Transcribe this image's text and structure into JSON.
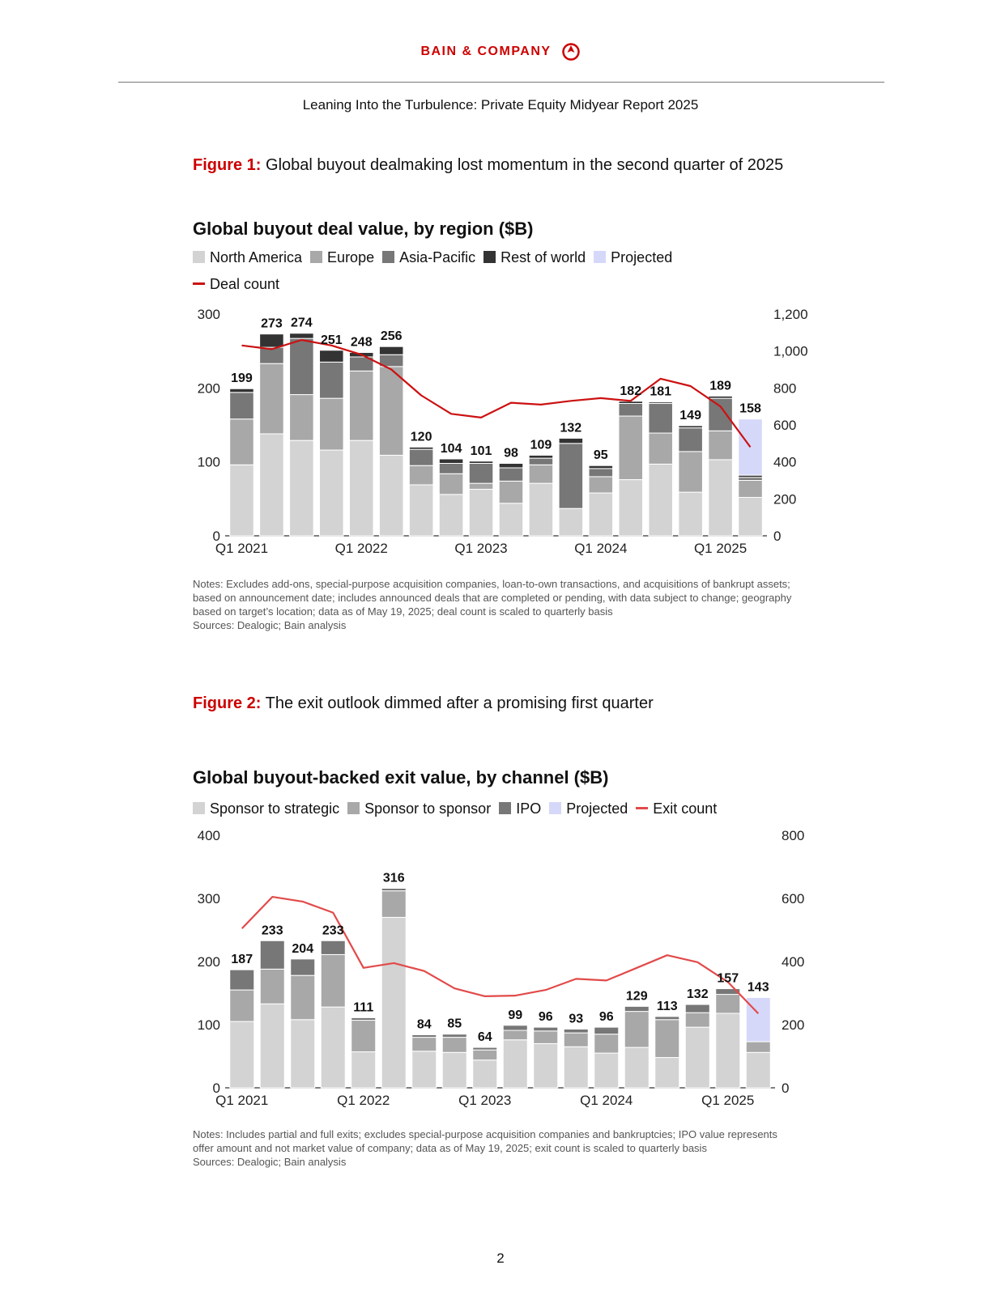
{
  "header": {
    "brand": "BAIN & COMPANY",
    "brand_color": "#cc0000",
    "report_title": "Leaning Into the Turbulence: Private Equity Midyear Report 2025"
  },
  "figure1": {
    "label": "Figure 1:",
    "caption": "Global buyout dealmaking lost momentum in the second quarter of 2025",
    "legend": [
      {
        "label": "North America",
        "color": "#d3d3d3",
        "kind": "box"
      },
      {
        "label": "Europe",
        "color": "#a8a8a8",
        "kind": "box"
      },
      {
        "label": "Asia-Pacific",
        "color": "#777777",
        "kind": "box"
      },
      {
        "label": "Rest of world",
        "color": "#333333",
        "kind": "box"
      },
      {
        "label": "Projected",
        "color": "#d6d8fa",
        "kind": "box"
      },
      {
        "label": "Deal count",
        "color": "#cc1111",
        "kind": "line"
      }
    ],
    "notes": "Notes: Excludes add-ons, special-purpose acquisition companies, loan-to-own transactions, and acquisitions of bankrupt assets; based on announcement date; includes announced deals that are completed or pending, with data subject to change; geography based on target’s location; data as of May 19, 2025; deal count is scaled to quarterly basis",
    "sources": "Sources: Dealogic; Bain analysis"
  },
  "figure2": {
    "label": "Figure 2:",
    "caption": "The exit outlook dimmed after a promising first quarter",
    "legend": [
      {
        "label": "Sponsor to strategic",
        "color": "#d3d3d3",
        "kind": "box"
      },
      {
        "label": "Sponsor to sponsor",
        "color": "#a8a8a8",
        "kind": "box"
      },
      {
        "label": "IPO",
        "color": "#777777",
        "kind": "box"
      },
      {
        "label": "Projected",
        "color": "#d6d8fa",
        "kind": "box"
      },
      {
        "label": "Exit count",
        "color": "#e24a4a",
        "kind": "line"
      }
    ],
    "notes": "Notes: Includes partial and full exits; excludes special-purpose acquisition companies and bankruptcies; IPO value represents offer amount and not market value of company; data as of May 19, 2025; exit count is scaled to quarterly basis",
    "sources": "Sources: Dealogic; Bain analysis"
  },
  "page_number": "2",
  "chart_data": [
    {
      "type": "bar",
      "stacked": true,
      "title": "Global buyout deal value, by region ($B)",
      "x_tick_labels": [
        {
          "index": 0,
          "label": "Q1 2021"
        },
        {
          "index": 4,
          "label": "Q1 2022"
        },
        {
          "index": 8,
          "label": "Q1 2023"
        },
        {
          "index": 12,
          "label": "Q1 2024"
        },
        {
          "index": 16,
          "label": "Q1 2025"
        }
      ],
      "ylim": [
        0,
        300
      ],
      "y_ticks": [
        0,
        100,
        200,
        300
      ],
      "y2lim": [
        0,
        1200
      ],
      "y2_ticks": [
        "0",
        "200",
        "400",
        "600",
        "800",
        "1,000",
        "1,200"
      ],
      "grid": false,
      "legend_position": "top-left",
      "series": [
        {
          "name": "North America",
          "color": "#d3d3d3",
          "values": [
            96,
            138,
            129,
            116,
            129,
            109,
            69,
            56,
            63,
            44,
            71,
            37,
            58,
            76,
            97,
            59,
            103,
            52
          ]
        },
        {
          "name": "Europe",
          "color": "#a8a8a8",
          "values": [
            62,
            95,
            62,
            70,
            94,
            120,
            26,
            28,
            8,
            30,
            25,
            0,
            22,
            86,
            42,
            55,
            39,
            23
          ]
        },
        {
          "name": "Asia-Pacific",
          "color": "#777777",
          "values": [
            36,
            22,
            76,
            49,
            19,
            16,
            22,
            14,
            27,
            18,
            9,
            88,
            11,
            17,
            40,
            32,
            44,
            4
          ]
        },
        {
          "name": "Rest of world",
          "color": "#333333",
          "values": [
            5,
            18,
            7,
            16,
            6,
            11,
            3,
            6,
            3,
            6,
            4,
            7,
            4,
            3,
            2,
            3,
            3,
            3
          ]
        },
        {
          "name": "Projected",
          "color": "#d6d8fa",
          "values": [
            0,
            0,
            0,
            0,
            0,
            0,
            0,
            0,
            0,
            0,
            0,
            0,
            0,
            0,
            0,
            0,
            0,
            76
          ]
        }
      ],
      "totals": [
        199,
        273,
        274,
        251,
        248,
        256,
        120,
        104,
        101,
        98,
        109,
        132,
        95,
        182,
        181,
        149,
        189,
        158
      ],
      "line": {
        "name": "Deal count",
        "color": "#cc1111",
        "axis": "right",
        "values": [
          1030,
          1010,
          1060,
          1030,
          980,
          900,
          760,
          660,
          640,
          720,
          710,
          730,
          745,
          730,
          850,
          810,
          700,
          480
        ]
      }
    },
    {
      "type": "bar",
      "stacked": true,
      "title": "Global buyout-backed exit value, by channel ($B)",
      "x_tick_labels": [
        {
          "index": 0,
          "label": "Q1 2021"
        },
        {
          "index": 4,
          "label": "Q1 2022"
        },
        {
          "index": 8,
          "label": "Q1 2023"
        },
        {
          "index": 12,
          "label": "Q1 2024"
        },
        {
          "index": 16,
          "label": "Q1 2025"
        }
      ],
      "ylim": [
        0,
        400
      ],
      "y_ticks": [
        0,
        100,
        200,
        300,
        400
      ],
      "y2lim": [
        0,
        800
      ],
      "y2_ticks": [
        "0",
        "200",
        "400",
        "600",
        "800"
      ],
      "grid": false,
      "legend_position": "top-left",
      "series": [
        {
          "name": "Sponsor to strategic",
          "color": "#d3d3d3",
          "values": [
            105,
            133,
            108,
            128,
            57,
            270,
            58,
            56,
            44,
            76,
            70,
            65,
            55,
            64,
            48,
            96,
            118,
            56
          ]
        },
        {
          "name": "Sponsor to sponsor",
          "color": "#a8a8a8",
          "values": [
            50,
            55,
            70,
            83,
            50,
            42,
            22,
            24,
            16,
            15,
            20,
            22,
            30,
            57,
            60,
            23,
            30,
            17
          ]
        },
        {
          "name": "IPO",
          "color": "#777777",
          "values": [
            32,
            45,
            26,
            22,
            4,
            4,
            4,
            5,
            4,
            8,
            6,
            6,
            11,
            8,
            5,
            13,
            9,
            0
          ]
        },
        {
          "name": "Projected",
          "color": "#d6d8fa",
          "values": [
            0,
            0,
            0,
            0,
            0,
            0,
            0,
            0,
            0,
            0,
            0,
            0,
            0,
            0,
            0,
            0,
            0,
            70
          ]
        }
      ],
      "totals": [
        187,
        233,
        204,
        233,
        111,
        316,
        84,
        85,
        64,
        99,
        96,
        93,
        96,
        129,
        113,
        132,
        157,
        143
      ],
      "line": {
        "name": "Exit count",
        "color": "#e24a4a",
        "axis": "right",
        "values": [
          505,
          605,
          590,
          555,
          380,
          395,
          370,
          315,
          290,
          292,
          310,
          345,
          340,
          380,
          420,
          398,
          335,
          235
        ]
      }
    }
  ]
}
